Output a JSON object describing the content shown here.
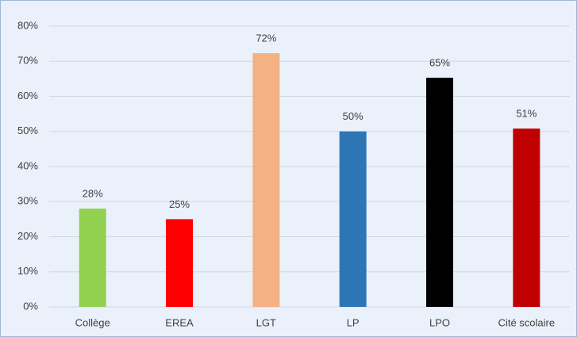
{
  "chart_data": {
    "type": "bar",
    "categories": [
      "Collège",
      "EREA",
      "LGT",
      "LP",
      "LPO",
      "Cité scolaire"
    ],
    "values": [
      28,
      25,
      72.3,
      50,
      65.3,
      50.8
    ],
    "value_labels": [
      "28%",
      "25%",
      "72%",
      "50%",
      "65%",
      "51%"
    ],
    "colors": [
      "#92d050",
      "#ff0000",
      "#f4b183",
      "#2e75b6",
      "#000000",
      "#c00000"
    ],
    "ylim": [
      0,
      80
    ],
    "yticks": [
      {
        "value": 0,
        "label": "0%"
      },
      {
        "value": 10,
        "label": "10%"
      },
      {
        "value": 20,
        "label": "20%"
      },
      {
        "value": 30,
        "label": "30%"
      },
      {
        "value": 40,
        "label": "40%"
      },
      {
        "value": 50,
        "label": "50%"
      },
      {
        "value": 60,
        "label": "60%"
      },
      {
        "value": 70,
        "label": "70%"
      },
      {
        "value": 80,
        "label": "80%"
      }
    ],
    "grid": true
  }
}
